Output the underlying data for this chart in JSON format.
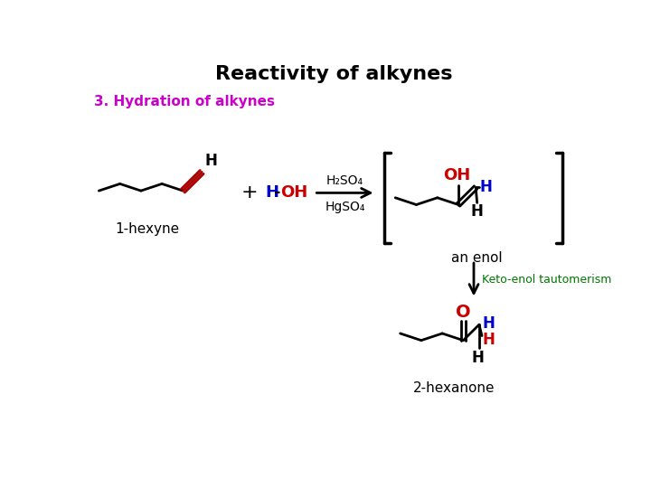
{
  "title": "Reactivity of alkynes",
  "subtitle": "3. Hydration of alkynes",
  "title_color": "#000000",
  "subtitle_color": "#cc00cc",
  "background_color": "#ffffff",
  "label_1hexyne": "1-hexyne",
  "label_enol": "an enol",
  "label_2hexanone": "2-hexanone",
  "label_keto": "Keto-enol tautomerism",
  "label_keto_color": "#007700",
  "h2so4_text": "H₂SO₄",
  "hgso4_text": "HgSO₄",
  "water_blue": "#0000cc",
  "water_red": "#cc0000",
  "oh_red": "#cc0000",
  "h_blue": "#0000cc",
  "bond_black": "#000000",
  "triple_bond_red": "#aa0000"
}
